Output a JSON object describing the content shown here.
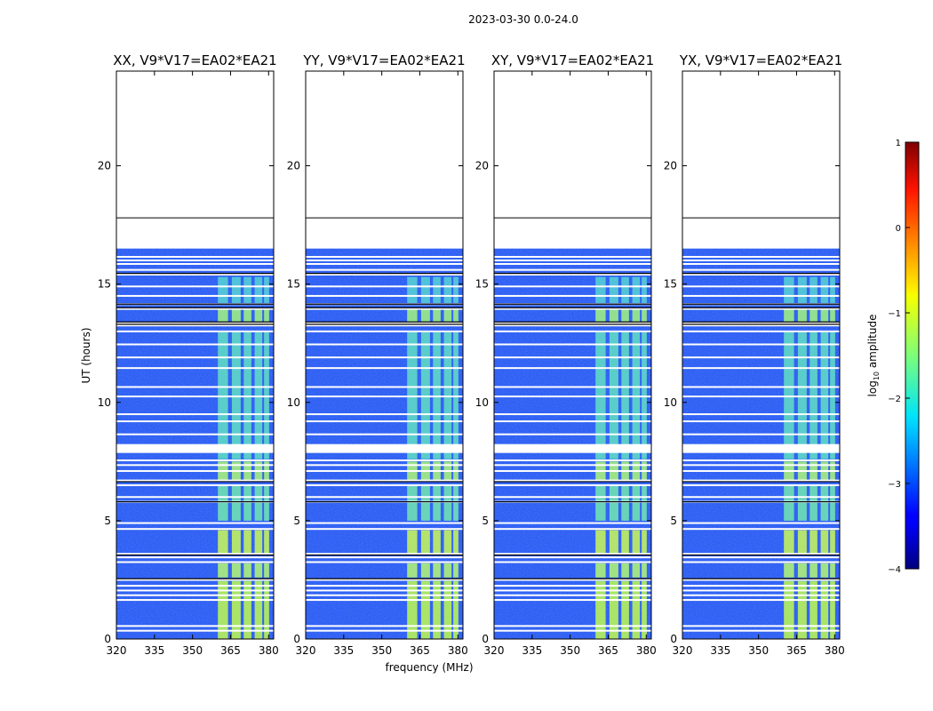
{
  "chart_data": {
    "type": "heatmap",
    "title": "2023-03-30 0.0-24.0",
    "xlabel": "frequency (MHz)",
    "ylabel": "UT (hours)",
    "xlim": [
      320,
      382
    ],
    "ylim": [
      0,
      24
    ],
    "x_ticks": [
      "320",
      "335",
      "350",
      "365",
      "380"
    ],
    "x_tick_values": [
      320,
      335,
      350,
      365,
      380
    ],
    "y_ticks": [
      "0",
      "5",
      "10",
      "15",
      "20"
    ],
    "y_tick_values": [
      0,
      5,
      10,
      15,
      20
    ],
    "panels": [
      {
        "title": "XX, V9*V17=EA02*EA21"
      },
      {
        "title": "YY, V9*V17=EA02*EA21"
      },
      {
        "title": "XY, V9*V17=EA02*EA21"
      },
      {
        "title": "YX, V9*V17=EA02*EA21"
      }
    ],
    "data_extent_hours": [
      0,
      16.5
    ],
    "blank_line_hours": 17.8,
    "bright_band_mhz": [
      360,
      380
    ],
    "colorbar": {
      "label_main": "log",
      "label_sub": "10",
      "label_rest": " amplitude",
      "range": [
        -4,
        1
      ],
      "ticks": [
        "1",
        "0",
        "−1",
        "−2",
        "−3",
        "−4"
      ],
      "tick_values": [
        1,
        0,
        -1,
        -2,
        -3,
        -4
      ],
      "colormap": "jet"
    }
  }
}
